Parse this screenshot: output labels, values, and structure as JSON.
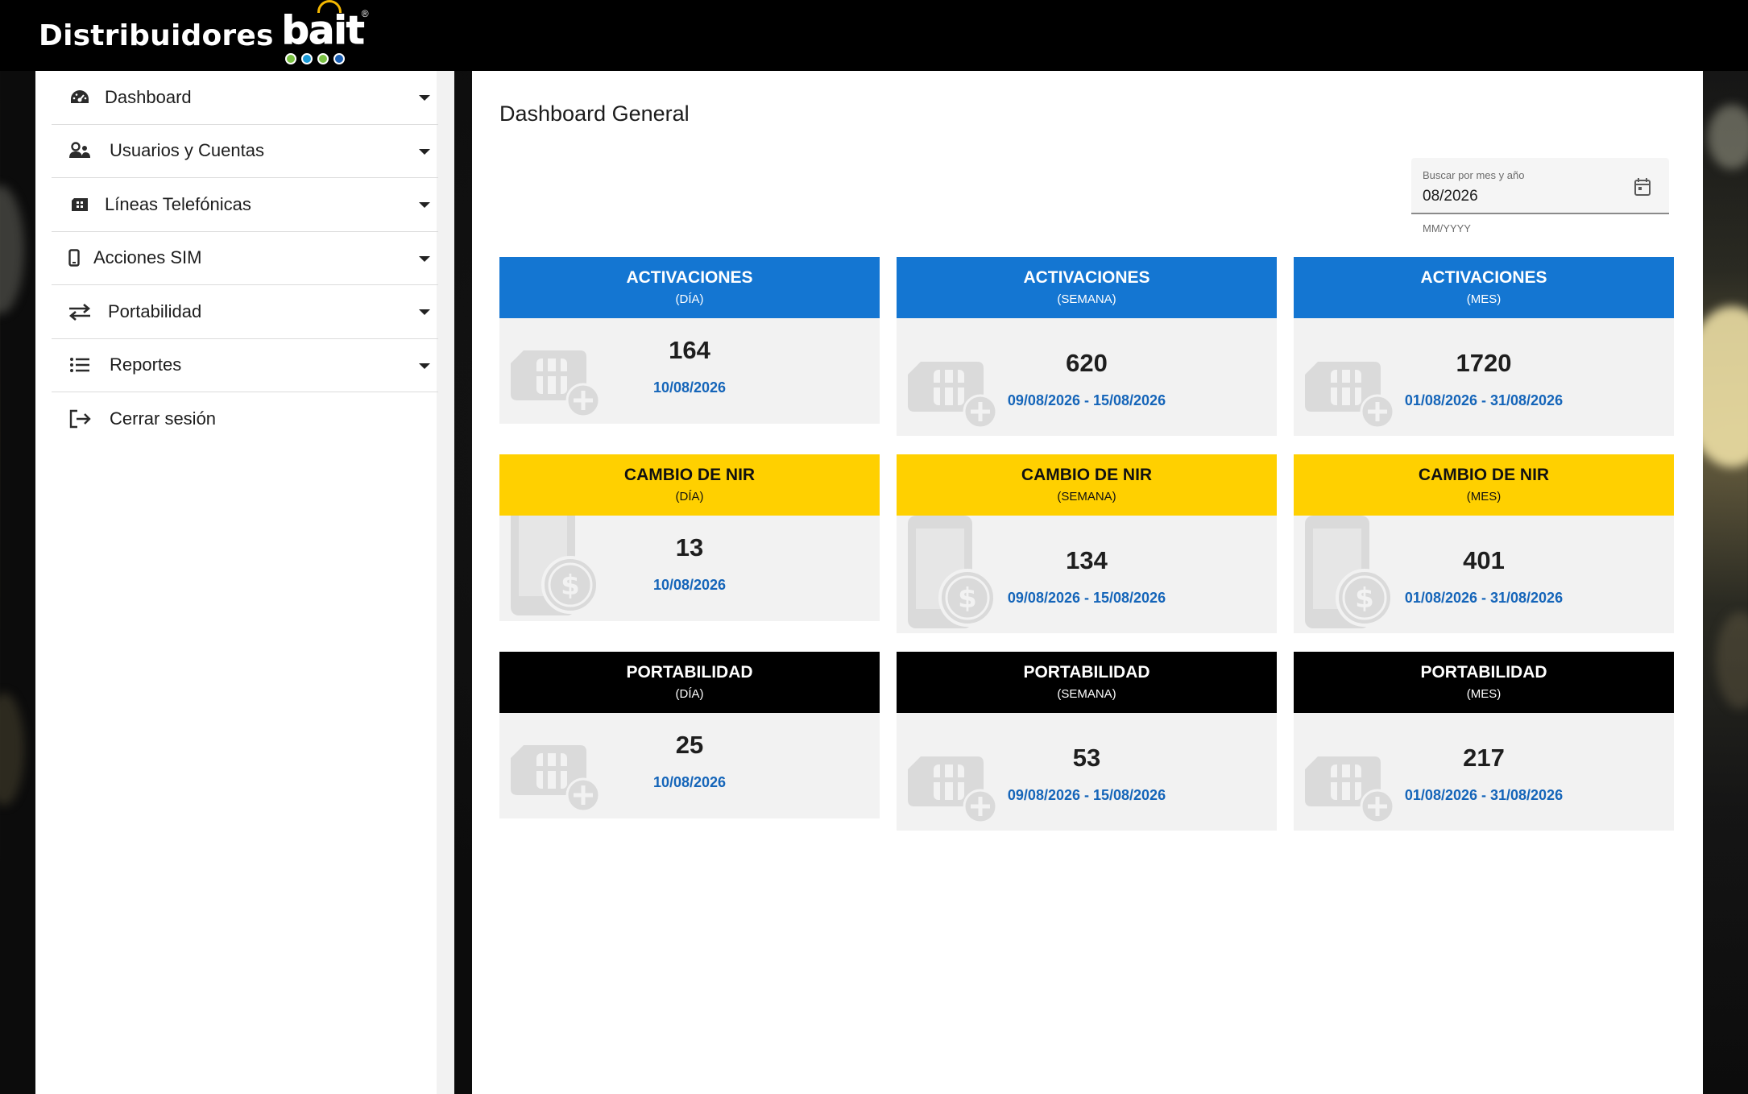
{
  "header": {
    "brand_text": "Distribuidores",
    "logo_word": "bait",
    "logo_reg": "®",
    "logo_dot_colors": [
      "#7ac143",
      "#1a9ad6",
      "#7ac143",
      "#1a5fb4"
    ]
  },
  "sidebar": {
    "items": [
      {
        "label": "Dashboard",
        "icon": "dashboard-icon"
      },
      {
        "label": "Usuarios y Cuentas",
        "icon": "users-icon"
      },
      {
        "label": "Líneas Telefónicas",
        "icon": "sim-card-icon"
      },
      {
        "label": "Acciones SIM",
        "icon": "mobile-phone-icon"
      },
      {
        "label": "Portabilidad",
        "icon": "swap-arrows-icon"
      },
      {
        "label": "Reportes",
        "icon": "list-icon"
      },
      {
        "label": "Cerrar sesión",
        "icon": "logout-icon"
      }
    ]
  },
  "main": {
    "title": "Dashboard General",
    "date_filter": {
      "label": "Buscar por mes y año",
      "value": "08/2026",
      "hint": "MM/YYYY"
    },
    "cards": [
      {
        "title": "ACTIVACIONES",
        "period": "(DÍA)",
        "value": "164",
        "date": "10/08/2026",
        "color": "#1476d2"
      },
      {
        "title": "ACTIVACIONES",
        "period": "(SEMANA)",
        "value": "620",
        "date": "09/08/2026  -  15/08/2026",
        "color": "#1476d2"
      },
      {
        "title": "ACTIVACIONES",
        "period": "(MES)",
        "value": "1720",
        "date": "01/08/2026  -  31/08/2026",
        "color": "#1476d2"
      },
      {
        "title": "CAMBIO DE NIR",
        "period": "(DÍA)",
        "value": "13",
        "date": "10/08/2026",
        "color": "#ffd000"
      },
      {
        "title": "CAMBIO DE NIR",
        "period": "(SEMANA)",
        "value": "134",
        "date": "09/08/2026  -  15/08/2026",
        "color": "#ffd000"
      },
      {
        "title": "CAMBIO DE NIR",
        "period": "(MES)",
        "value": "401",
        "date": "01/08/2026  -  31/08/2026",
        "color": "#ffd000"
      },
      {
        "title": "PORTABILIDAD",
        "period": "(DÍA)",
        "value": "25",
        "date": "10/08/2026",
        "color": "#000000"
      },
      {
        "title": "PORTABILIDAD",
        "period": "(SEMANA)",
        "value": "53",
        "date": "09/08/2026  -  15/08/2026",
        "color": "#000000"
      },
      {
        "title": "PORTABILIDAD",
        "period": "(MES)",
        "value": "217",
        "date": "01/08/2026  -  31/08/2026",
        "color": "#000000"
      }
    ]
  }
}
